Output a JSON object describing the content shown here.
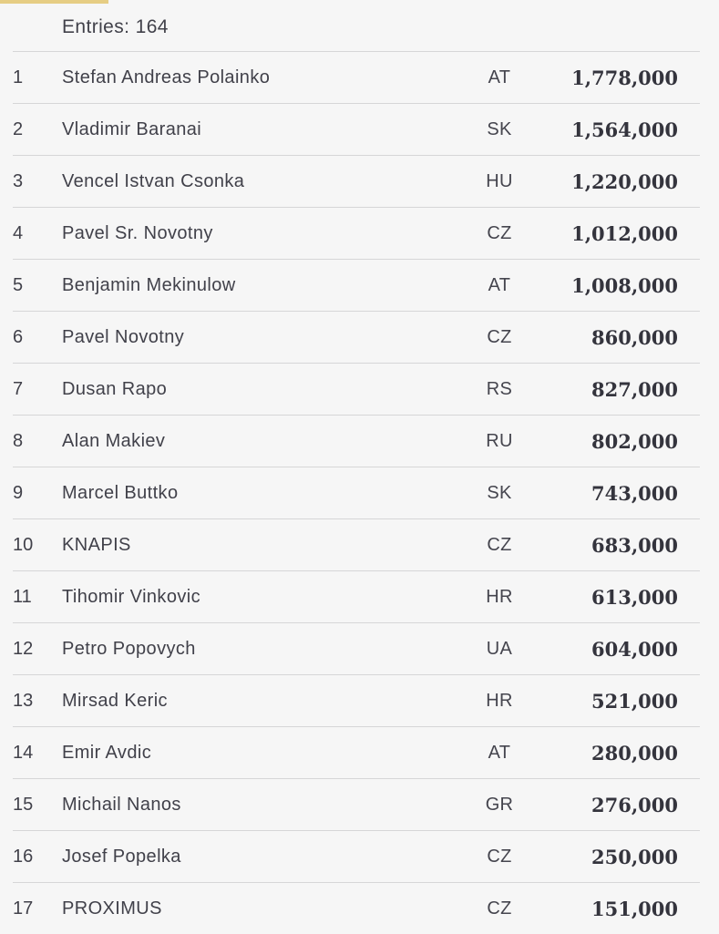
{
  "page": {
    "background_color": "#f6f6f6",
    "accent_bar_color": "#e6cd84",
    "separator_color": "#d6d6d7",
    "text_color": "#41414a"
  },
  "header": {
    "entries_label": "Entries: 164"
  },
  "table": {
    "columns": [
      "rank",
      "name",
      "country",
      "chips"
    ],
    "rows": [
      {
        "rank": "1",
        "name": "Stefan Andreas Polainko",
        "country": "AT",
        "chips": "1,778,000"
      },
      {
        "rank": "2",
        "name": "Vladimir Baranai",
        "country": "SK",
        "chips": "1,564,000"
      },
      {
        "rank": "3",
        "name": "Vencel Istvan Csonka",
        "country": "HU",
        "chips": "1,220,000"
      },
      {
        "rank": "4",
        "name": "Pavel Sr. Novotny",
        "country": "CZ",
        "chips": "1,012,000"
      },
      {
        "rank": "5",
        "name": "Benjamin Mekinulow",
        "country": "AT",
        "chips": "1,008,000"
      },
      {
        "rank": "6",
        "name": "Pavel Novotny",
        "country": "CZ",
        "chips": "860,000"
      },
      {
        "rank": "7",
        "name": "Dusan Rapo",
        "country": "RS",
        "chips": "827,000"
      },
      {
        "rank": "8",
        "name": "Alan Makiev",
        "country": "RU",
        "chips": "802,000"
      },
      {
        "rank": "9",
        "name": "Marcel Buttko",
        "country": "SK",
        "chips": "743,000"
      },
      {
        "rank": "10",
        "name": "KNAPIS",
        "country": "CZ",
        "chips": "683,000"
      },
      {
        "rank": "11",
        "name": "Tihomir Vinkovic",
        "country": "HR",
        "chips": "613,000"
      },
      {
        "rank": "12",
        "name": "Petro Popovych",
        "country": "UA",
        "chips": "604,000"
      },
      {
        "rank": "13",
        "name": "Mirsad Keric",
        "country": "HR",
        "chips": "521,000"
      },
      {
        "rank": "14",
        "name": "Emir Avdic",
        "country": "AT",
        "chips": "280,000"
      },
      {
        "rank": "15",
        "name": "Michail Nanos",
        "country": "GR",
        "chips": "276,000"
      },
      {
        "rank": "16",
        "name": "Josef Popelka",
        "country": "CZ",
        "chips": "250,000"
      },
      {
        "rank": "17",
        "name": "PROXIMUS",
        "country": "CZ",
        "chips": "151,000"
      }
    ]
  }
}
